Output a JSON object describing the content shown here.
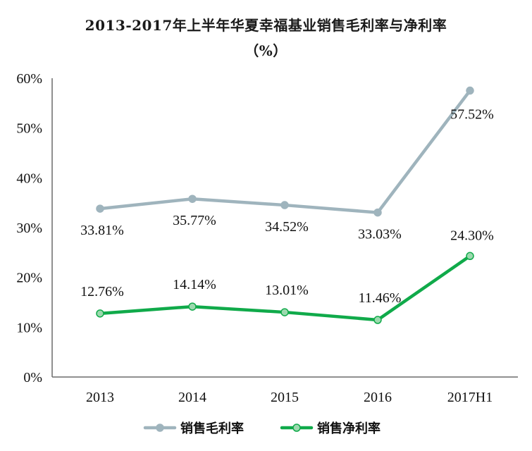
{
  "chart_data": {
    "type": "line",
    "title": "2013-2017年上半年华夏幸福基业销售毛利率与净利率",
    "subtitle": "（%）",
    "categories": [
      "2013",
      "2014",
      "2015",
      "2016",
      "2017H1"
    ],
    "y_ticks": [
      "0%",
      "10%",
      "20%",
      "30%",
      "40%",
      "50%",
      "60%"
    ],
    "ylim": [
      0,
      60
    ],
    "grid": false,
    "legend_position": "bottom",
    "series": [
      {
        "name": "销售毛利率",
        "values": [
          33.81,
          35.77,
          34.52,
          33.03,
          57.52
        ],
        "labels": [
          "33.81%",
          "35.77%",
          "34.52%",
          "33.03%",
          "57.52%"
        ],
        "color": "#9fb4bd",
        "marker_fill": "#9fb4bd"
      },
      {
        "name": "销售净利率",
        "values": [
          12.76,
          14.14,
          13.01,
          11.46,
          24.3
        ],
        "labels": [
          "12.76%",
          "14.14%",
          "13.01%",
          "11.46%",
          "24.30%"
        ],
        "color": "#10aa4a",
        "marker_fill": "#9cd9ae"
      }
    ]
  }
}
